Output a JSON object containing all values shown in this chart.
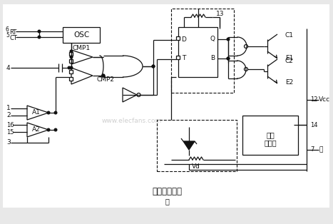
{
  "title": "内部等效电路",
  "subtitle": "一",
  "bg_color": "#e8e8e8",
  "line_color": "#111111",
  "watermark": "www.elecfans.com",
  "figsize": [
    4.67,
    3.14
  ],
  "dpi": 100
}
